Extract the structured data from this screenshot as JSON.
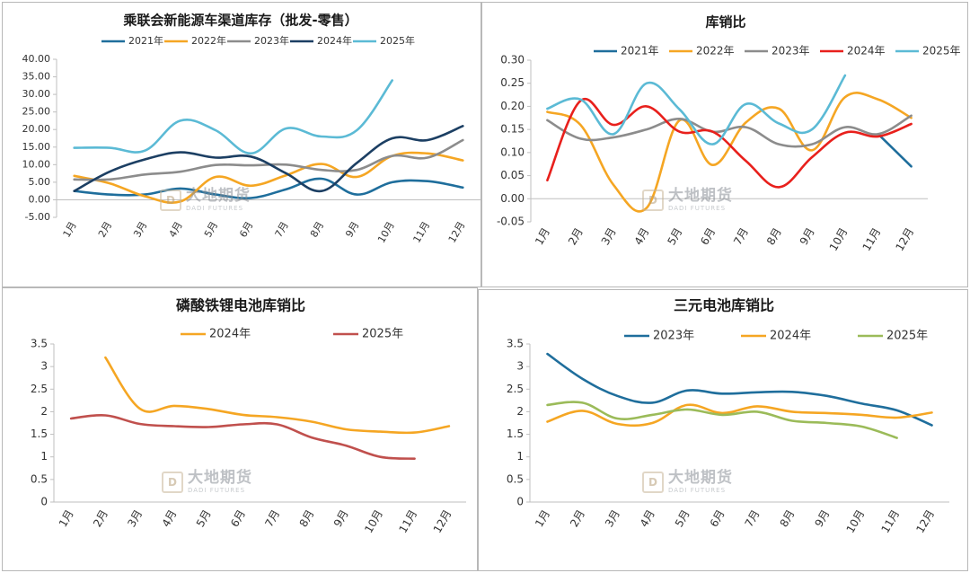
{
  "watermark": {
    "cn": "大地期货",
    "en": "DADI FUTURES",
    "logo": "D"
  },
  "chart_data": [
    {
      "type": "line",
      "title": "乘联会新能源车渠道库存（批发-零售）",
      "categories": [
        "1月",
        "2月",
        "3月",
        "4月",
        "5月",
        "6月",
        "7月",
        "8月",
        "9月",
        "10月",
        "11月",
        "12月"
      ],
      "ylim": [
        -5,
        40
      ],
      "yticks": [
        "-5.00",
        "0.00",
        "5.00",
        "10.00",
        "15.00",
        "20.00",
        "25.00",
        "30.00",
        "35.00",
        "40.00"
      ],
      "legend_position": "top",
      "series": [
        {
          "name": "2021年",
          "color": "#1f6e9c",
          "values": [
            2.5,
            1.5,
            1.5,
            3.2,
            1.5,
            0.5,
            3.0,
            6.0,
            1.5,
            5.0,
            5.3,
            3.5
          ]
        },
        {
          "name": "2022年",
          "color": "#f5a623",
          "values": [
            6.8,
            4.7,
            1.0,
            -0.5,
            6.5,
            4.0,
            7.0,
            10.2,
            6.5,
            12.5,
            13.2,
            11.2
          ]
        },
        {
          "name": "2023年",
          "color": "#8c8c8c",
          "values": [
            5.8,
            5.8,
            7.2,
            8.0,
            9.9,
            9.8,
            10.0,
            8.5,
            8.5,
            12.5,
            12.0,
            17.0
          ]
        },
        {
          "name": "2024年",
          "color": "#1c3f63",
          "values": [
            2.5,
            8.0,
            11.5,
            13.5,
            12.0,
            12.3,
            7.5,
            2.5,
            10.5,
            17.5,
            17.0,
            21.0
          ]
        },
        {
          "name": "2025年",
          "color": "#5bbad5",
          "values": [
            14.8,
            14.8,
            14.0,
            22.5,
            19.8,
            13.2,
            20.3,
            18.0,
            19.8,
            34.0,
            null,
            null
          ]
        }
      ]
    },
    {
      "type": "line",
      "title": "库销比",
      "categories": [
        "1月",
        "2月",
        "3月",
        "4月",
        "5月",
        "6月",
        "7月",
        "8月",
        "9月",
        "10月",
        "11月",
        "12月"
      ],
      "ylim": [
        -0.05,
        0.3
      ],
      "yticks": [
        "-0.05",
        "0.00",
        "0.05",
        "0.10",
        "0.15",
        "0.20",
        "0.25",
        "0.30"
      ],
      "legend_position": "top",
      "series": [
        {
          "name": "2021年",
          "color": "#1f6e9c",
          "values": [
            null,
            null,
            null,
            null,
            null,
            null,
            null,
            null,
            null,
            null,
            0.14,
            0.07
          ]
        },
        {
          "name": "2022年",
          "color": "#f5a623",
          "values": [
            0.188,
            0.16,
            0.03,
            -0.02,
            0.17,
            0.073,
            0.165,
            0.195,
            0.105,
            0.22,
            0.215,
            0.175
          ]
        },
        {
          "name": "2023年",
          "color": "#8c8c8c",
          "values": [
            0.17,
            0.13,
            0.133,
            0.15,
            0.173,
            0.145,
            0.155,
            0.118,
            0.118,
            0.155,
            0.14,
            0.18
          ]
        },
        {
          "name": "2024年",
          "color": "#e8201c",
          "values": [
            0.04,
            0.212,
            0.16,
            0.2,
            0.145,
            0.145,
            0.082,
            0.025,
            0.09,
            0.143,
            0.135,
            0.162
          ]
        },
        {
          "name": "2025年",
          "color": "#5bbad5",
          "values": [
            0.195,
            0.215,
            0.14,
            0.25,
            0.193,
            0.118,
            0.205,
            0.163,
            0.15,
            0.267,
            null,
            null
          ]
        }
      ]
    },
    {
      "type": "line",
      "title": "磷酸铁锂电池库销比",
      "categories": [
        "1月",
        "2月",
        "3月",
        "4月",
        "5月",
        "6月",
        "7月",
        "8月",
        "9月",
        "10月",
        "11月",
        "12月"
      ],
      "ylim": [
        0,
        3.5
      ],
      "yticks": [
        "0",
        "0.5",
        "1",
        "1.5",
        "2",
        "2.5",
        "3",
        "3.5"
      ],
      "legend_position": "top",
      "series": [
        {
          "name": "2024年",
          "color": "#f5a623",
          "values": [
            null,
            3.2,
            2.07,
            2.13,
            2.06,
            1.93,
            1.88,
            1.78,
            1.61,
            1.56,
            1.54,
            1.68
          ]
        },
        {
          "name": "2025年",
          "color": "#c0504d",
          "values": [
            1.85,
            1.92,
            1.73,
            1.68,
            1.66,
            1.72,
            1.72,
            1.43,
            1.25,
            1.0,
            0.96,
            null
          ]
        }
      ]
    },
    {
      "type": "line",
      "title": "三元电池库销比",
      "categories": [
        "1月",
        "2月",
        "3月",
        "4月",
        "5月",
        "6月",
        "7月",
        "8月",
        "9月",
        "10月",
        "11月",
        "12月"
      ],
      "ylim": [
        0,
        3.5
      ],
      "yticks": [
        "0",
        "0.5",
        "1",
        "1.5",
        "2",
        "2.5",
        "3",
        "3.5"
      ],
      "legend_position": "top",
      "series": [
        {
          "name": "2023年",
          "color": "#1f6e9c",
          "values": [
            3.28,
            2.73,
            2.35,
            2.2,
            2.47,
            2.4,
            2.43,
            2.44,
            2.35,
            2.18,
            2.03,
            1.7
          ]
        },
        {
          "name": "2024年",
          "color": "#f5a623",
          "values": [
            1.78,
            2.02,
            1.73,
            1.75,
            2.15,
            1.97,
            2.12,
            2.0,
            1.97,
            1.93,
            1.87,
            1.98
          ]
        },
        {
          "name": "2025年",
          "color": "#9bbb59",
          "values": [
            2.15,
            2.2,
            1.85,
            1.93,
            2.05,
            1.93,
            2.0,
            1.8,
            1.75,
            1.67,
            1.42,
            null
          ]
        }
      ]
    }
  ]
}
